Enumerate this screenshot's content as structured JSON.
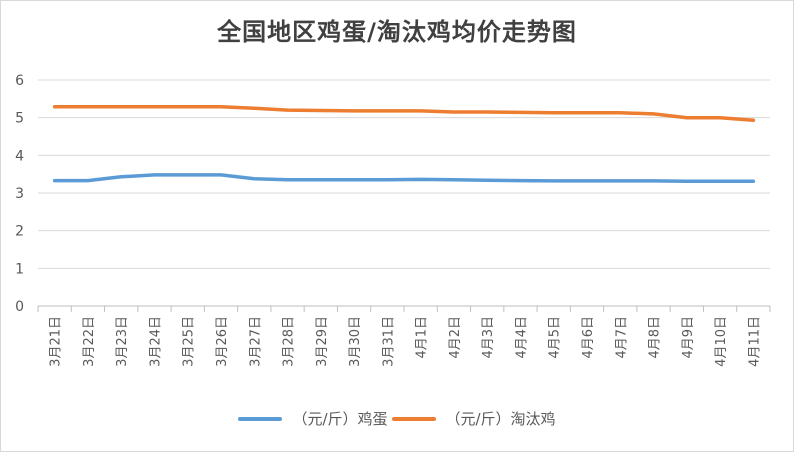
{
  "chart_data": {
    "type": "line",
    "title": "全国地区鸡蛋/淘汰鸡均价走势图",
    "categories": [
      "3月21日",
      "3月22日",
      "3月23日",
      "3月24日",
      "3月25日",
      "3月26日",
      "3月27日",
      "3月28日",
      "3月29日",
      "3月30日",
      "3月31日",
      "4月1日",
      "4月2日",
      "4月3日",
      "4月4日",
      "4月5日",
      "4月6日",
      "4月7日",
      "4月8日",
      "4月9日",
      "4月10日",
      "4月11日"
    ],
    "series": [
      {
        "name": "（元/斤）鸡蛋",
        "color": "#5b9bd5",
        "values": [
          3.33,
          3.33,
          3.43,
          3.48,
          3.48,
          3.48,
          3.38,
          3.35,
          3.35,
          3.35,
          3.35,
          3.36,
          3.35,
          3.34,
          3.33,
          3.32,
          3.32,
          3.32,
          3.32,
          3.31,
          3.31,
          3.31
        ]
      },
      {
        "name": "（元/斤）淘汰鸡",
        "color": "#ed7d31",
        "values": [
          5.29,
          5.29,
          5.29,
          5.29,
          5.29,
          5.29,
          5.25,
          5.2,
          5.19,
          5.18,
          5.18,
          5.18,
          5.15,
          5.15,
          5.14,
          5.13,
          5.13,
          5.13,
          5.1,
          5.0,
          5.0,
          4.93
        ]
      }
    ],
    "ylim": [
      0,
      6
    ],
    "yticks": [
      "0",
      "1",
      "2",
      "3",
      "4",
      "5",
      "6"
    ],
    "grid": true,
    "legend": "bottom"
  }
}
